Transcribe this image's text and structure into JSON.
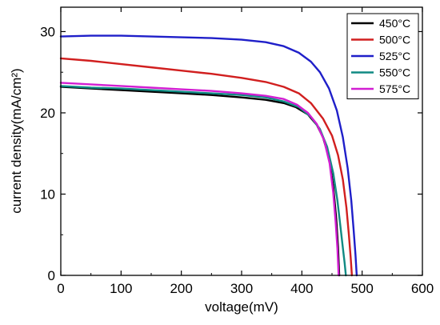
{
  "chart_data": {
    "type": "line",
    "xlabel": "voltage(mV)",
    "ylabel": "current density(mA/cm²)",
    "xlim": [
      0,
      600
    ],
    "ylim": [
      0,
      33
    ],
    "x_ticks": [
      0,
      100,
      200,
      300,
      400,
      500,
      600
    ],
    "y_ticks": [
      0,
      10,
      20,
      30
    ],
    "grid": false,
    "legend_position": "top-right",
    "series": [
      {
        "name": "450°C",
        "color": "#000000",
        "x": [
          0,
          50,
          100,
          150,
          200,
          250,
          300,
          340,
          370,
          390,
          410,
          425,
          435,
          445,
          452,
          457,
          460,
          462
        ],
        "y": [
          23.2,
          23.0,
          22.8,
          22.6,
          22.4,
          22.2,
          21.9,
          21.6,
          21.2,
          20.7,
          19.8,
          18.5,
          17.0,
          14.5,
          11.0,
          7.0,
          3.5,
          0
        ]
      },
      {
        "name": "500°C",
        "color": "#d11f1f",
        "x": [
          0,
          50,
          100,
          150,
          200,
          250,
          300,
          340,
          370,
          395,
          415,
          435,
          450,
          460,
          468,
          474,
          478,
          481,
          483
        ],
        "y": [
          26.7,
          26.4,
          26.0,
          25.6,
          25.2,
          24.8,
          24.3,
          23.8,
          23.2,
          22.4,
          21.2,
          19.3,
          17.2,
          14.8,
          11.8,
          8.3,
          5.0,
          2.2,
          0
        ]
      },
      {
        "name": "525°C",
        "color": "#1f1fc9",
        "x": [
          0,
          50,
          100,
          150,
          200,
          250,
          300,
          340,
          370,
          395,
          415,
          430,
          445,
          458,
          468,
          476,
          482,
          486,
          489,
          491
        ],
        "y": [
          29.4,
          29.5,
          29.5,
          29.4,
          29.3,
          29.2,
          29.0,
          28.7,
          28.2,
          27.4,
          26.3,
          25.0,
          23.0,
          20.3,
          17.0,
          13.2,
          9.2,
          5.5,
          2.5,
          0
        ]
      },
      {
        "name": "550°C",
        "color": "#108a83",
        "x": [
          0,
          50,
          100,
          150,
          200,
          250,
          300,
          340,
          370,
          395,
          415,
          430,
          442,
          452,
          459,
          464,
          468,
          471,
          473
        ],
        "y": [
          23.3,
          23.1,
          23.0,
          22.8,
          22.6,
          22.4,
          22.2,
          21.9,
          21.4,
          20.7,
          19.5,
          18.0,
          15.8,
          12.6,
          9.2,
          6.0,
          3.4,
          1.5,
          0
        ]
      },
      {
        "name": "575°C",
        "color": "#d21ed2",
        "x": [
          0,
          50,
          100,
          150,
          200,
          250,
          300,
          340,
          370,
          392,
          410,
          425,
          437,
          446,
          452,
          456,
          459,
          461
        ],
        "y": [
          23.7,
          23.5,
          23.3,
          23.1,
          22.9,
          22.7,
          22.4,
          22.1,
          21.7,
          21.0,
          20.0,
          18.6,
          16.6,
          13.8,
          10.2,
          6.6,
          3.3,
          0
        ]
      }
    ]
  }
}
